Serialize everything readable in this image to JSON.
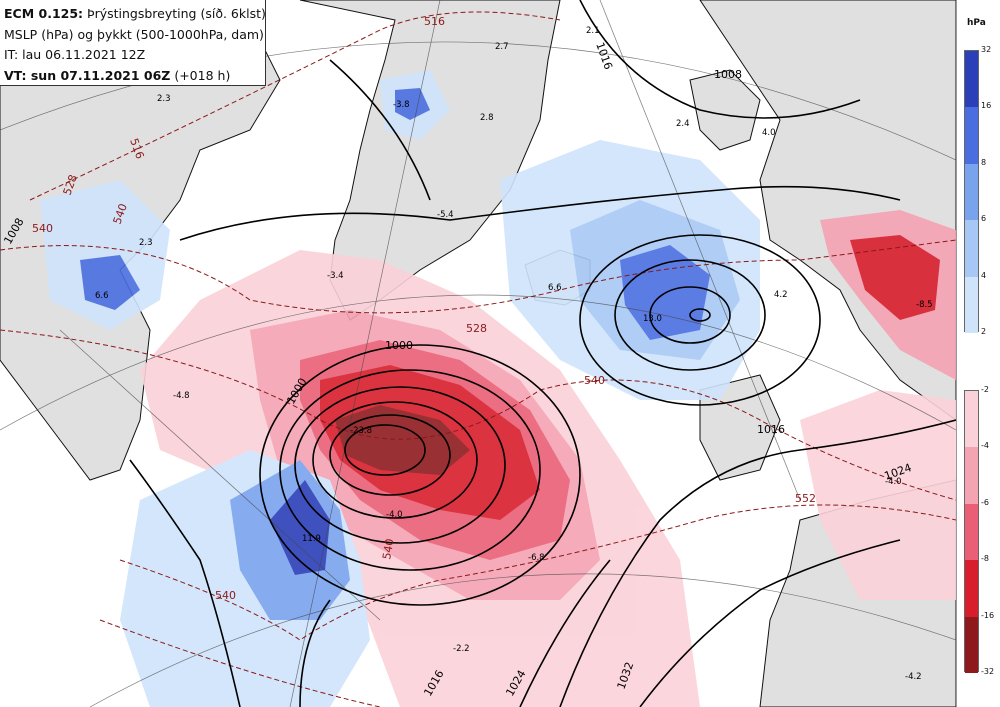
{
  "header": {
    "model": "ECM 0.125:",
    "title_rest": " Þrýstingsbreyting (síð. 6klst)",
    "line2": "MSLP (hPa) og þykkt (500-1000hPa, dam)",
    "line3": "IT: lau 06.11.2021 12Z",
    "vt_label": "VT: sun 07.11.2021 06Z",
    "vt_offset": " (+018 h)"
  },
  "legend": {
    "unit": "hPa",
    "blue_scale": {
      "ticks": [
        "32",
        "16",
        "8",
        "6",
        "4",
        "2"
      ],
      "colors": [
        "#2b3fb8",
        "#4a6ee0",
        "#7aa3ee",
        "#a7c8f5",
        "#cfe4fb"
      ]
    },
    "red_scale": {
      "ticks": [
        "-2",
        "-4",
        "-6",
        "-8",
        "-16",
        "-32"
      ],
      "colors": [
        "#fbd1d9",
        "#f4a3b2",
        "#ea5f75",
        "#d81e2c",
        "#8e1a1e"
      ]
    }
  },
  "map": {
    "colors": {
      "land": "#e0e0e0",
      "coast": "#111111",
      "isobar": "#000000",
      "thickness": "#8b1a1a",
      "grid": "#444444"
    },
    "isobar_labels": [
      "1000",
      "1000",
      "1008",
      "1008",
      "1016",
      "1016",
      "1016",
      "1024",
      "1024",
      "1032"
    ],
    "thickness_labels": [
      "516",
      "528",
      "528",
      "540",
      "540",
      "540",
      "552",
      "540",
      "516",
      "540"
    ],
    "change_values": [
      "2.3",
      "2.7",
      "2.1",
      "-3.8",
      "2.8",
      "2.4",
      "4.0",
      "2.3",
      "-3.4",
      "6.6",
      "6.6",
      "-5.4",
      "13.0",
      "4.2",
      "-8.5",
      "-4.8",
      "-23.8",
      "11.9",
      "-6.8",
      "-2.2",
      "-4.0",
      "-4.0",
      "-4.2"
    ]
  }
}
